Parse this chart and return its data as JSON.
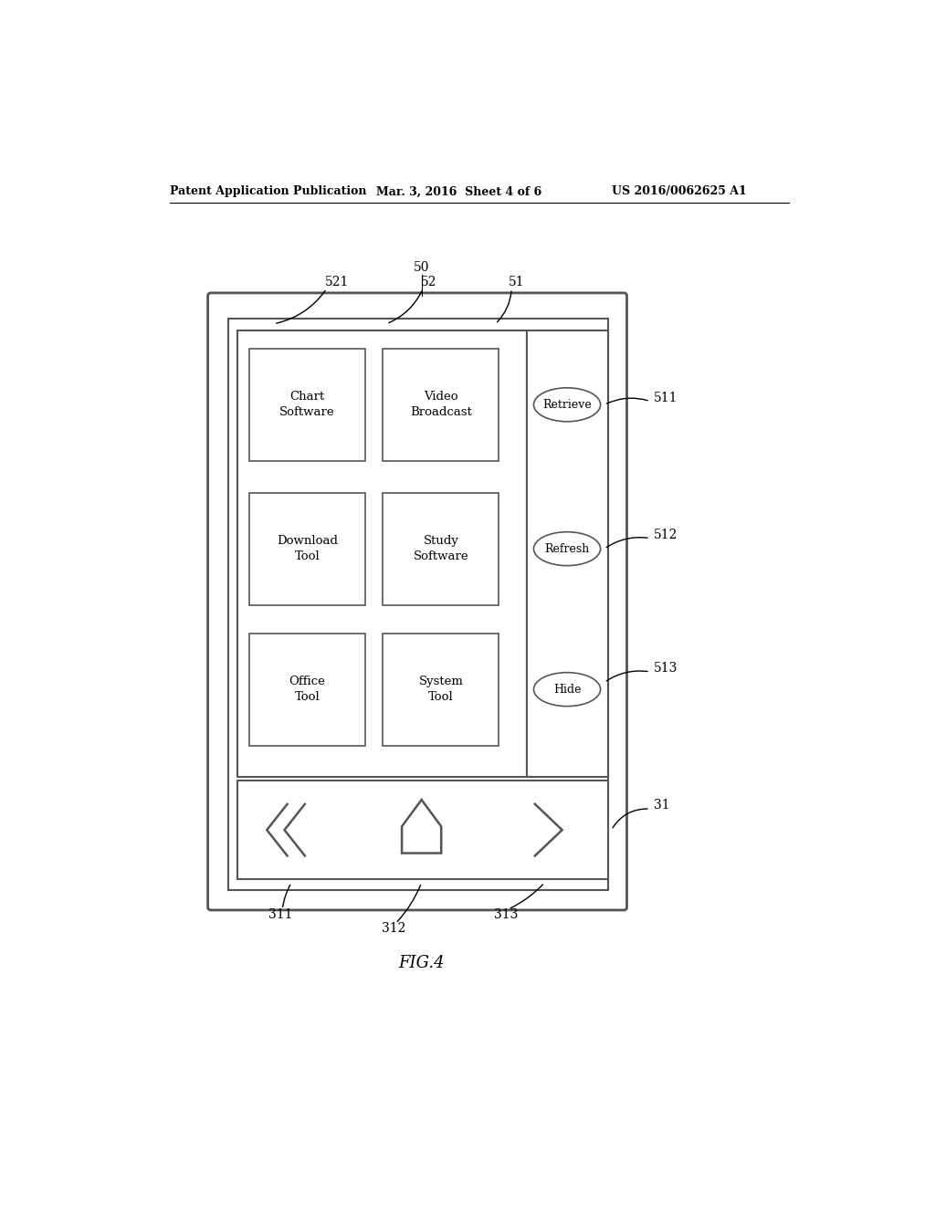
{
  "bg_color": "#ffffff",
  "header_left": "Patent Application Publication",
  "header_mid": "Mar. 3, 2016  Sheet 4 of 6",
  "header_right": "US 2016/0062625 A1",
  "fig_label": "FIG.4",
  "label_50": "50",
  "label_51": "51",
  "label_52": "52",
  "label_521": "521",
  "label_511": "511",
  "label_512": "512",
  "label_513": "513",
  "label_31": "31",
  "label_311": "311",
  "label_312": "312",
  "label_313": "313",
  "boxes": [
    {
      "label": "Chart\nSoftware",
      "col": 0,
      "row": 0
    },
    {
      "label": "Video\nBroadcast",
      "col": 1,
      "row": 0
    },
    {
      "label": "Download\nTool",
      "col": 0,
      "row": 1
    },
    {
      "label": "Study\nSoftware",
      "col": 1,
      "row": 1
    },
    {
      "label": "Office\nTool",
      "col": 0,
      "row": 2
    },
    {
      "label": "System\nTool",
      "col": 1,
      "row": 2
    }
  ],
  "ellipses": [
    {
      "label": "Retrieve"
    },
    {
      "label": "Refresh"
    },
    {
      "label": "Hide"
    }
  ]
}
